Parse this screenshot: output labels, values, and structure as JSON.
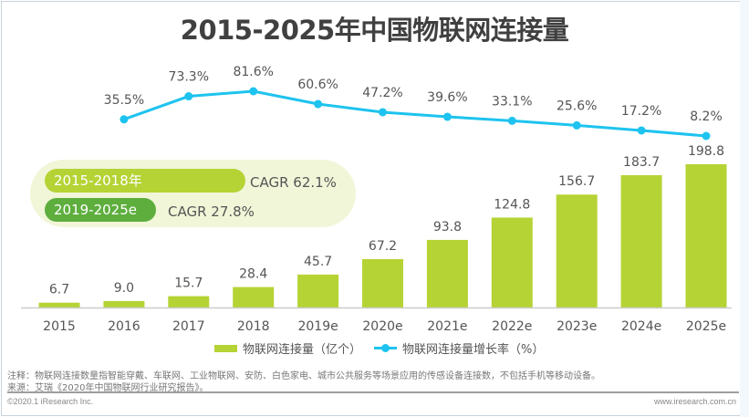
{
  "chart_data": {
    "type": "bar",
    "title": "2015-2025年中国物联网连接量",
    "categories": [
      "2015",
      "2016",
      "2017",
      "2018",
      "2019e",
      "2020e",
      "2021e",
      "2022e",
      "2023e",
      "2024e",
      "2025e"
    ],
    "series": [
      {
        "name": "物联网连接量（亿个）",
        "type": "bar",
        "color": "#b5d334",
        "values": [
          6.7,
          9.0,
          15.7,
          28.4,
          45.7,
          67.2,
          93.8,
          124.8,
          156.7,
          183.7,
          198.8
        ],
        "labels": [
          "6.7",
          "9.0",
          "15.7",
          "28.4",
          "45.7",
          "67.2",
          "93.8",
          "124.8",
          "156.7",
          "183.7",
          "198.8"
        ]
      },
      {
        "name": "物联网连接量增长率（%）",
        "type": "line",
        "color": "#1ec3ef",
        "values": [
          null,
          35.5,
          73.3,
          81.6,
          60.6,
          47.2,
          39.6,
          33.1,
          25.6,
          17.2,
          8.2
        ],
        "labels": [
          null,
          "35.5%",
          "73.3%",
          "81.6%",
          "60.6%",
          "47.2%",
          "39.6%",
          "33.1%",
          "25.6%",
          "17.2%",
          "8.2%"
        ]
      }
    ],
    "xlabel": "",
    "ylabel": "",
    "ylim": [
      0,
      200
    ],
    "grid": false,
    "legend": "bottom-center",
    "annotations": [
      {
        "period": "2015-2018年",
        "text": "CAGR 62.1%"
      },
      {
        "period": "2019-2025e",
        "text": "CAGR 27.8%"
      }
    ]
  },
  "header": {
    "title": "2015-2025年中国物联网连接量"
  },
  "cagr": {
    "period1": "2015-2018年",
    "value1": "CAGR 62.1%",
    "period2": "2019-2025e",
    "value2": "CAGR 27.8%"
  },
  "legend": {
    "bar_label": "物联网连接量（亿个）",
    "line_label": "物联网连接量增长率（%）"
  },
  "notes": {
    "note": "注释：物联网连接数量指智能穿戴、车联网、工业物联网、安防、白色家电、城市公共服务等场景应用的传感设备连接数，不包括手机等移动设备。",
    "source": "来源：艾瑞《2020年中国物联网行业研究报告》。"
  },
  "footer": {
    "copyright": "©2020.1 iResearch Inc.",
    "website": "www.iresearch.com.cn"
  },
  "colors": {
    "bar": "#b5d334",
    "line": "#1ec3ef",
    "pill_dark": "#5eae3e",
    "cagr_bg": "#f1f6d8"
  }
}
